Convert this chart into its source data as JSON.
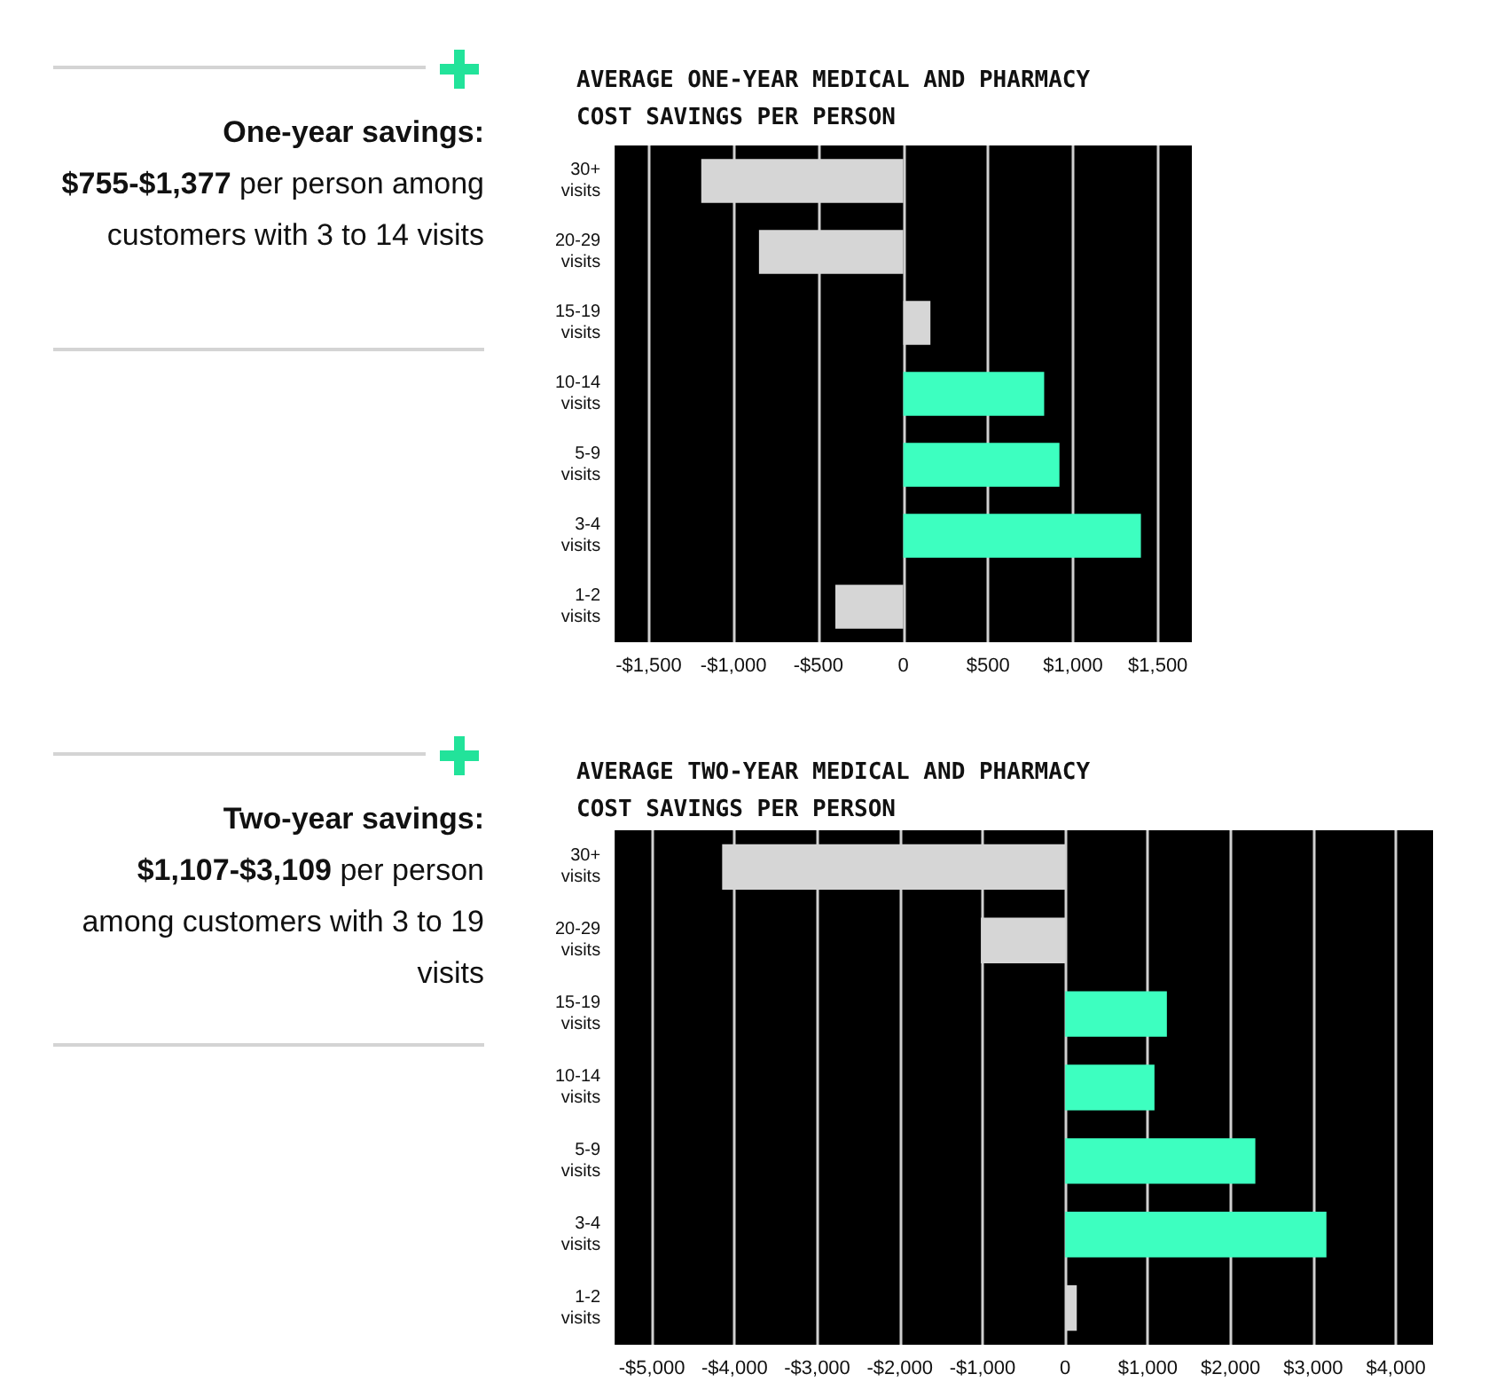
{
  "chart_data": [
    {
      "type": "other",
      "title": "One-year savings:",
      "subtitle": "$755-$1,377",
      "annotations": [
        "per person among customers with 3 to 14 visits"
      ]
    },
    {
      "type": "bar",
      "orientation": "horizontal",
      "title": "AVERAGE ONE-YEAR MEDICAL AND PHARMACY COST SAVINGS PER PERSON",
      "categories": [
        "30+ visits",
        "20-29 visits",
        "15-19 visits",
        "10-14 visits",
        "5-9 visits",
        "3-4 visits",
        "1-2 visits"
      ],
      "values": [
        -1190,
        -850,
        160,
        830,
        920,
        1400,
        -400
      ],
      "colors": [
        "#d6d6d6",
        "#d6d6d6",
        "#d6d6d6",
        "#3dffc0",
        "#3dffc0",
        "#3dffc0",
        "#d6d6d6"
      ],
      "xlim": [
        -1700,
        1700
      ],
      "xticks": [
        {
          "value": -1500,
          "label": "-$1,500"
        },
        {
          "value": -1000,
          "label": "-$1,000"
        },
        {
          "value": -500,
          "label": "-$500"
        },
        0,
        {
          "value": 500,
          "label": "$500"
        },
        {
          "value": 1000,
          "label": "$1,000"
        },
        {
          "value": 1500,
          "label": "$1,500"
        }
      ],
      "grid": "x"
    },
    {
      "type": "other",
      "title": "Two-year savings:",
      "subtitle": "$1,107-$3,109",
      "annotations": [
        "per person among customers with 3 to 19 visits"
      ]
    },
    {
      "type": "bar",
      "orientation": "horizontal",
      "title": "AVERAGE TWO-YEAR MEDICAL AND PHARMACY COST SAVINGS PER PERSON",
      "categories": [
        "30+ visits",
        "20-29 visits",
        "15-19 visits",
        "10-14 visits",
        "5-9 visits",
        "3-4 visits",
        "1-2 visits"
      ],
      "values": [
        -4150,
        -1020,
        1230,
        1080,
        2300,
        3160,
        140
      ],
      "colors": [
        "#d6d6d6",
        "#d6d6d6",
        "#3dffc0",
        "#3dffc0",
        "#3dffc0",
        "#3dffc0",
        "#d6d6d6"
      ],
      "xlim": [
        -5450,
        4450
      ],
      "xticks": [
        {
          "value": -5000,
          "label": "-$5,000"
        },
        {
          "value": -4000,
          "label": "-$4,000"
        },
        {
          "value": -3000,
          "label": "-$3,000"
        },
        {
          "value": -2000,
          "label": "-$2,000"
        },
        {
          "value": -1000,
          "label": "-$1,000"
        },
        0,
        {
          "value": 1000,
          "label": "$1,000"
        },
        {
          "value": 2000,
          "label": "$2,000"
        },
        {
          "value": 3000,
          "label": "$3,000"
        },
        {
          "value": 4000,
          "label": "$4,000"
        }
      ],
      "grid": "x"
    }
  ]
}
